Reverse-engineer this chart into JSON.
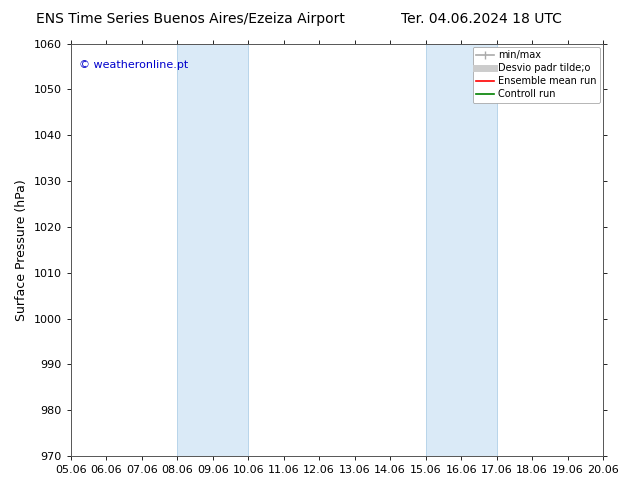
{
  "title_left": "ENS Time Series Buenos Aires/Ezeiza Airport",
  "title_right": "Ter. 04.06.2024 18 UTC",
  "ylabel": "Surface Pressure (hPa)",
  "watermark": "© weatheronline.pt",
  "ylim": [
    970,
    1060
  ],
  "yticks": [
    970,
    980,
    990,
    1000,
    1010,
    1020,
    1030,
    1040,
    1050,
    1060
  ],
  "xtick_labels": [
    "05.06",
    "06.06",
    "07.06",
    "08.06",
    "09.06",
    "10.06",
    "11.06",
    "12.06",
    "13.06",
    "14.06",
    "15.06",
    "16.06",
    "17.06",
    "18.06",
    "19.06",
    "20.06"
  ],
  "shaded_regions": [
    {
      "xmin": 3,
      "xmax": 5
    },
    {
      "xmin": 10,
      "xmax": 12
    }
  ],
  "shaded_color": "#daeaf7",
  "shaded_edge_color": "#b0cfe8",
  "background_color": "#ffffff",
  "title_fontsize": 10,
  "axis_label_fontsize": 9,
  "tick_fontsize": 8,
  "watermark_color": "#0000cc",
  "watermark_fontsize": 8,
  "legend_entries": [
    {
      "label": "min/max",
      "color": "#aaaaaa",
      "lw": 1.2
    },
    {
      "label": "Desvio padr tilde;o",
      "color": "#cccccc",
      "lw": 5
    },
    {
      "label": "Ensemble mean run",
      "color": "#ff0000",
      "lw": 1.2
    },
    {
      "label": "Controll run",
      "color": "#008000",
      "lw": 1.2
    }
  ]
}
